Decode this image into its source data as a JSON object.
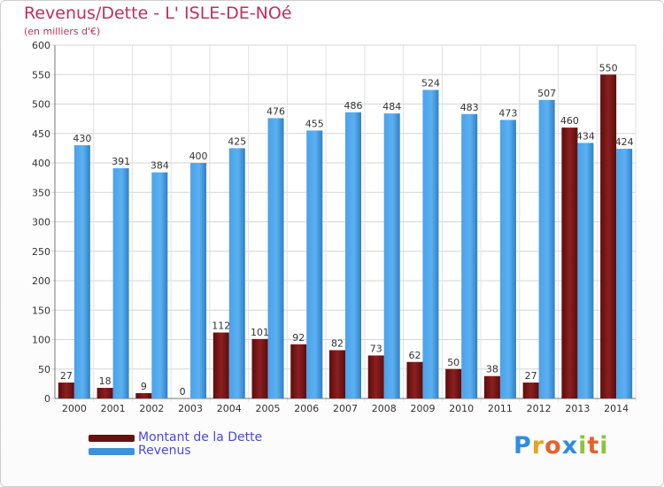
{
  "title": "Revenus/Dette - L' ISLE-DE-NOé",
  "subtitle": "(en milliers d'€)",
  "logo": {
    "text": "Proxiti",
    "letters": [
      "P",
      "r",
      "o",
      "x",
      "i",
      "t",
      "i"
    ],
    "colors": [
      "#2f8de0",
      "#e8a21e",
      "#e8602c",
      "#2f8de0",
      "#8cc43c",
      "#e8602c",
      "#8cc43c"
    ]
  },
  "colors": {
    "dette": "#7a1616",
    "revenus": "#3a92dc"
  },
  "chart_data": {
    "type": "bar",
    "categories": [
      "2000",
      "2001",
      "2002",
      "2003",
      "2004",
      "2005",
      "2006",
      "2007",
      "2008",
      "2009",
      "2010",
      "2011",
      "2012",
      "2013",
      "2014"
    ],
    "series": [
      {
        "name": "Montant de la Dette",
        "values": [
          27,
          18,
          9,
          0,
          112,
          101,
          92,
          82,
          73,
          62,
          50,
          38,
          27,
          460,
          550
        ]
      },
      {
        "name": "Revenus",
        "values": [
          430,
          391,
          384,
          400,
          425,
          476,
          455,
          486,
          484,
          524,
          483,
          473,
          507,
          434,
          424
        ]
      }
    ],
    "yticks": [
      0,
      50,
      100,
      150,
      200,
      250,
      300,
      350,
      400,
      450,
      500,
      550,
      600
    ],
    "ylim": [
      0,
      600
    ],
    "grid": true,
    "legend_position": "bottom-left"
  }
}
